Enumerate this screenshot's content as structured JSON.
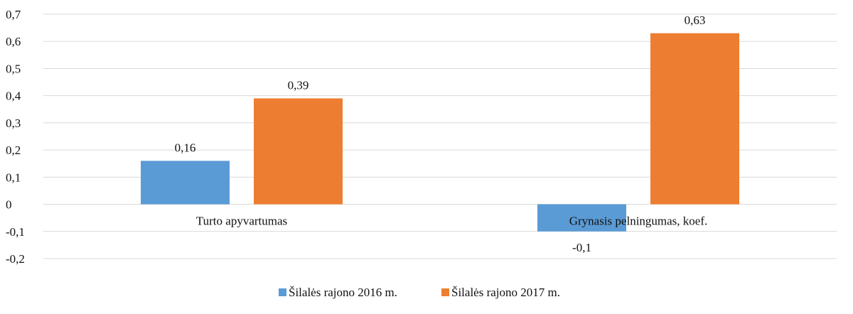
{
  "chart_data": {
    "type": "bar",
    "categories": [
      "Turto apyvartumas",
      "Grynasis pelningumas, koef."
    ],
    "series": [
      {
        "name": "Šilalės rajono 2016 m.",
        "values": [
          0.16,
          -0.1
        ],
        "labels": [
          "0,16",
          "-0,1"
        ],
        "color": "#5b9bd5"
      },
      {
        "name": "Šilalės rajono 2017 m.",
        "values": [
          0.39,
          0.63
        ],
        "labels": [
          "0,39",
          "0,63"
        ],
        "color": "#ed7d31"
      }
    ],
    "ylim": [
      -0.2,
      0.7
    ],
    "yticks": [
      {
        "value": 0.7,
        "label": "0,7"
      },
      {
        "value": 0.6,
        "label": "0,6"
      },
      {
        "value": 0.5,
        "label": "0,5"
      },
      {
        "value": 0.4,
        "label": "0,4"
      },
      {
        "value": 0.3,
        "label": "0,3"
      },
      {
        "value": 0.2,
        "label": "0,2"
      },
      {
        "value": 0.1,
        "label": "0,1"
      },
      {
        "value": 0.0,
        "label": "0"
      },
      {
        "value": -0.1,
        "label": "-0,1"
      },
      {
        "value": -0.2,
        "label": "-0,2"
      }
    ],
    "grid": true,
    "legend_position": "bottom",
    "title": "",
    "xlabel": "",
    "ylabel": "",
    "gridline_color": "#d9d9d9"
  }
}
